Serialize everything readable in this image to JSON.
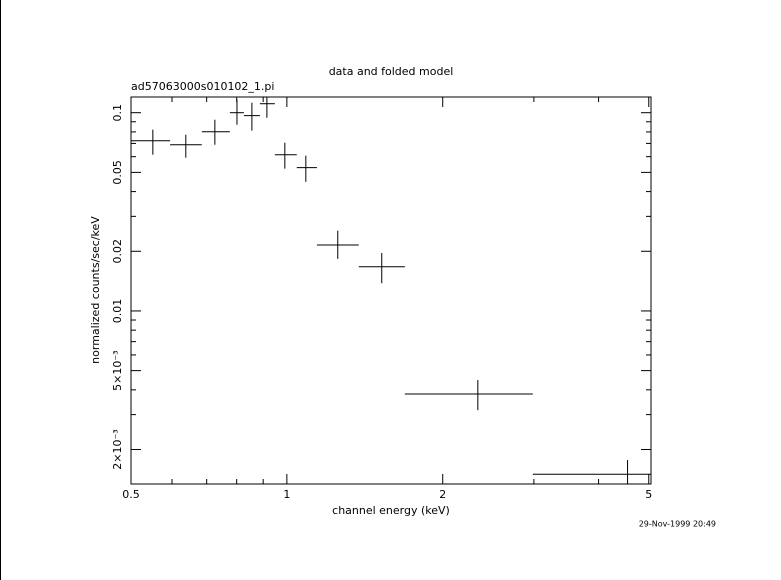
{
  "chart_data": {
    "type": "scatter",
    "title": "data and folded model",
    "subtitle": "ad57063000s010102_1.pi",
    "x_label": "channel energy (keV)",
    "y_label": "normalized counts/sec/keV",
    "timestamp": "29-Nov-1999 20:49",
    "x_log": true,
    "y_log": true,
    "color": "#000000",
    "x": [
      0.551,
      0.638,
      0.726,
      0.801,
      0.856,
      0.915,
      0.991,
      1.088,
      1.254,
      1.525,
      2.338,
      4.55
    ],
    "x_low": [
      0.5,
      0.595,
      0.685,
      0.776,
      0.826,
      0.887,
      0.948,
      1.045,
      1.143,
      1.377,
      1.69,
      2.985
    ],
    "x_high": [
      0.595,
      0.685,
      0.776,
      0.826,
      0.887,
      0.948,
      1.045,
      1.143,
      1.377,
      1.69,
      2.985,
      5.05
    ],
    "values": [
      0.0722,
      0.0689,
      0.0802,
      0.1,
      0.0966,
      0.111,
      0.0614,
      0.0528,
      0.0215,
      0.0167,
      0.00381,
      0.0015
    ],
    "y_low": [
      0.0614,
      0.0593,
      0.0689,
      0.087,
      0.0812,
      0.0943,
      0.0522,
      0.0448,
      0.0183,
      0.0138,
      0.00316,
      0.00134
    ],
    "y_high": [
      0.0821,
      0.0774,
      0.0922,
      0.1164,
      0.1123,
      0.12,
      0.0706,
      0.0607,
      0.0254,
      0.0196,
      0.00448,
      0.00177
    ],
    "xlim": [
      0.5,
      5.05
    ],
    "ylim": [
      0.00134,
      0.12
    ],
    "xticks": [
      0.5,
      1,
      2,
      5
    ],
    "xminorticks": [
      0.6,
      0.7,
      0.8,
      0.9,
      3,
      4
    ],
    "yticks": [
      0.1,
      0.05,
      0.02,
      0.01,
      {
        "value": 0.005,
        "label": "5×10⁻³"
      },
      {
        "value": 0.002,
        "label": "2×10⁻³"
      }
    ],
    "yminorticks": [
      0.003,
      0.004,
      0.006,
      0.007,
      0.008,
      0.009,
      0.03,
      0.04,
      0.06,
      0.07,
      0.08,
      0.09
    ]
  }
}
